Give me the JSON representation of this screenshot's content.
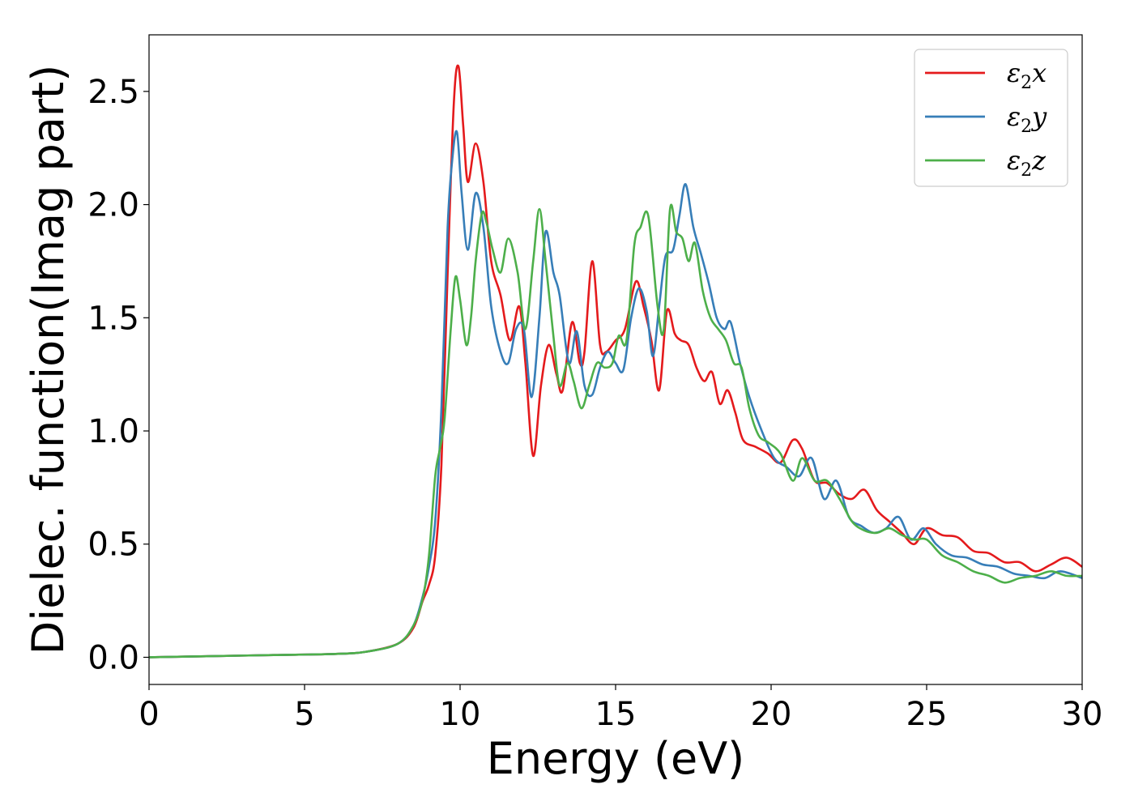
{
  "chart_data": {
    "type": "line",
    "title": "",
    "xlabel": "Energy (eV)",
    "ylabel": "Dielec. function(Imag part)",
    "xlim": [
      0,
      30
    ],
    "ylim": [
      -0.12,
      2.75
    ],
    "xticks": [
      0,
      5,
      10,
      15,
      20,
      25,
      30
    ],
    "yticks": [
      0.0,
      0.5,
      1.0,
      1.5,
      2.0,
      2.5
    ],
    "xtick_labels": [
      "0",
      "5",
      "10",
      "15",
      "20",
      "25",
      "30"
    ],
    "ytick_labels": [
      "0.0",
      "0.5",
      "1.0",
      "1.5",
      "2.0",
      "2.5"
    ],
    "grid": false,
    "legend_position": "top-right",
    "series": [
      {
        "name": "ε2x",
        "symbol": "ε",
        "subscript": "2",
        "component": "x",
        "color": "#e41a1c",
        "x": [
          0,
          2,
          4,
          6,
          7,
          8,
          8.5,
          8.8,
          9.0,
          9.2,
          9.4,
          9.6,
          9.8,
          9.95,
          10.1,
          10.25,
          10.5,
          10.75,
          11.0,
          11.3,
          11.6,
          11.9,
          12.1,
          12.35,
          12.6,
          12.85,
          13.1,
          13.3,
          13.6,
          13.85,
          14.0,
          14.25,
          14.5,
          14.7,
          15.0,
          15.3,
          15.65,
          15.9,
          16.15,
          16.4,
          16.65,
          16.9,
          17.1,
          17.35,
          17.6,
          17.85,
          18.1,
          18.35,
          18.6,
          18.85,
          19.1,
          19.5,
          19.9,
          20.3,
          20.7,
          21.0,
          21.4,
          21.8,
          22.2,
          22.6,
          23.0,
          23.4,
          23.8,
          24.2,
          24.6,
          25.0,
          25.5,
          26.0,
          26.5,
          27.0,
          27.5,
          28.0,
          28.5,
          29.0,
          29.5,
          30.0
        ],
        "y": [
          0.0,
          0.005,
          0.01,
          0.015,
          0.025,
          0.06,
          0.13,
          0.25,
          0.32,
          0.45,
          0.85,
          1.7,
          2.45,
          2.61,
          2.35,
          2.1,
          2.27,
          2.1,
          1.75,
          1.6,
          1.4,
          1.55,
          1.3,
          0.89,
          1.2,
          1.38,
          1.25,
          1.18,
          1.48,
          1.3,
          1.35,
          1.75,
          1.38,
          1.35,
          1.4,
          1.45,
          1.66,
          1.55,
          1.4,
          1.18,
          1.53,
          1.43,
          1.4,
          1.38,
          1.28,
          1.22,
          1.26,
          1.12,
          1.18,
          1.08,
          0.96,
          0.93,
          0.9,
          0.86,
          0.96,
          0.92,
          0.78,
          0.77,
          0.72,
          0.7,
          0.74,
          0.65,
          0.6,
          0.55,
          0.5,
          0.57,
          0.54,
          0.53,
          0.47,
          0.46,
          0.42,
          0.42,
          0.38,
          0.41,
          0.44,
          0.4
        ]
      },
      {
        "name": "ε2y",
        "symbol": "ε",
        "subscript": "2",
        "component": "y",
        "color": "#377eb8",
        "x": [
          0,
          2,
          4,
          6,
          7,
          8,
          8.5,
          8.8,
          9.0,
          9.2,
          9.4,
          9.6,
          9.75,
          9.9,
          10.05,
          10.25,
          10.5,
          10.75,
          11.0,
          11.3,
          11.55,
          11.8,
          12.05,
          12.3,
          12.55,
          12.75,
          13.0,
          13.2,
          13.5,
          13.75,
          14.0,
          14.25,
          14.5,
          14.75,
          15.0,
          15.25,
          15.5,
          15.75,
          16.0,
          16.2,
          16.4,
          16.6,
          16.85,
          17.05,
          17.25,
          17.5,
          17.75,
          18.0,
          18.25,
          18.5,
          18.7,
          19.0,
          19.3,
          19.7,
          20.1,
          20.5,
          20.9,
          21.3,
          21.7,
          22.1,
          22.5,
          22.9,
          23.3,
          23.7,
          24.1,
          24.5,
          24.9,
          25.3,
          25.8,
          26.3,
          26.8,
          27.3,
          27.8,
          28.3,
          28.8,
          29.3,
          30.0
        ],
        "y": [
          0.0,
          0.005,
          0.01,
          0.015,
          0.025,
          0.06,
          0.14,
          0.27,
          0.4,
          0.6,
          1.1,
          1.9,
          2.2,
          2.32,
          2.05,
          1.8,
          2.05,
          1.9,
          1.55,
          1.35,
          1.3,
          1.45,
          1.45,
          1.15,
          1.5,
          1.88,
          1.7,
          1.6,
          1.3,
          1.44,
          1.2,
          1.16,
          1.28,
          1.35,
          1.3,
          1.27,
          1.5,
          1.63,
          1.53,
          1.33,
          1.55,
          1.77,
          1.8,
          1.95,
          2.09,
          1.9,
          1.78,
          1.65,
          1.5,
          1.45,
          1.48,
          1.3,
          1.15,
          1.0,
          0.88,
          0.84,
          0.8,
          0.88,
          0.7,
          0.78,
          0.62,
          0.58,
          0.55,
          0.57,
          0.62,
          0.52,
          0.57,
          0.5,
          0.45,
          0.44,
          0.41,
          0.4,
          0.37,
          0.36,
          0.35,
          0.38,
          0.35
        ]
      },
      {
        "name": "ε2z",
        "symbol": "ε",
        "subscript": "2",
        "component": "z",
        "color": "#4daf4a",
        "x": [
          0,
          2,
          4,
          6,
          7,
          8,
          8.5,
          8.8,
          9.0,
          9.2,
          9.35,
          9.5,
          9.7,
          9.85,
          10.0,
          10.2,
          10.35,
          10.5,
          10.7,
          10.85,
          11.05,
          11.3,
          11.55,
          11.85,
          12.1,
          12.35,
          12.55,
          12.75,
          13.0,
          13.2,
          13.45,
          13.65,
          13.9,
          14.15,
          14.4,
          14.65,
          14.9,
          15.1,
          15.35,
          15.6,
          15.8,
          16.05,
          16.35,
          16.55,
          16.75,
          16.95,
          17.15,
          17.35,
          17.55,
          17.8,
          18.05,
          18.3,
          18.55,
          18.8,
          19.05,
          19.3,
          19.6,
          19.9,
          20.3,
          20.7,
          21.0,
          21.4,
          21.8,
          22.2,
          22.6,
          23.0,
          23.4,
          23.8,
          24.2,
          24.6,
          25.0,
          25.5,
          26.0,
          26.5,
          27.0,
          27.5,
          28.0,
          28.5,
          29.0,
          29.5,
          30.0
        ],
        "y": [
          0.0,
          0.005,
          0.01,
          0.015,
          0.025,
          0.06,
          0.14,
          0.26,
          0.45,
          0.8,
          0.92,
          1.05,
          1.45,
          1.68,
          1.58,
          1.38,
          1.5,
          1.75,
          1.96,
          1.92,
          1.8,
          1.7,
          1.85,
          1.7,
          1.45,
          1.75,
          1.98,
          1.75,
          1.42,
          1.2,
          1.3,
          1.22,
          1.1,
          1.2,
          1.3,
          1.28,
          1.3,
          1.42,
          1.4,
          1.82,
          1.9,
          1.95,
          1.55,
          1.45,
          1.98,
          1.88,
          1.85,
          1.75,
          1.83,
          1.62,
          1.5,
          1.45,
          1.4,
          1.3,
          1.28,
          1.1,
          0.98,
          0.95,
          0.9,
          0.78,
          0.88,
          0.78,
          0.78,
          0.7,
          0.6,
          0.56,
          0.55,
          0.57,
          0.54,
          0.52,
          0.52,
          0.45,
          0.42,
          0.38,
          0.36,
          0.33,
          0.35,
          0.36,
          0.38,
          0.36,
          0.36
        ]
      }
    ]
  }
}
